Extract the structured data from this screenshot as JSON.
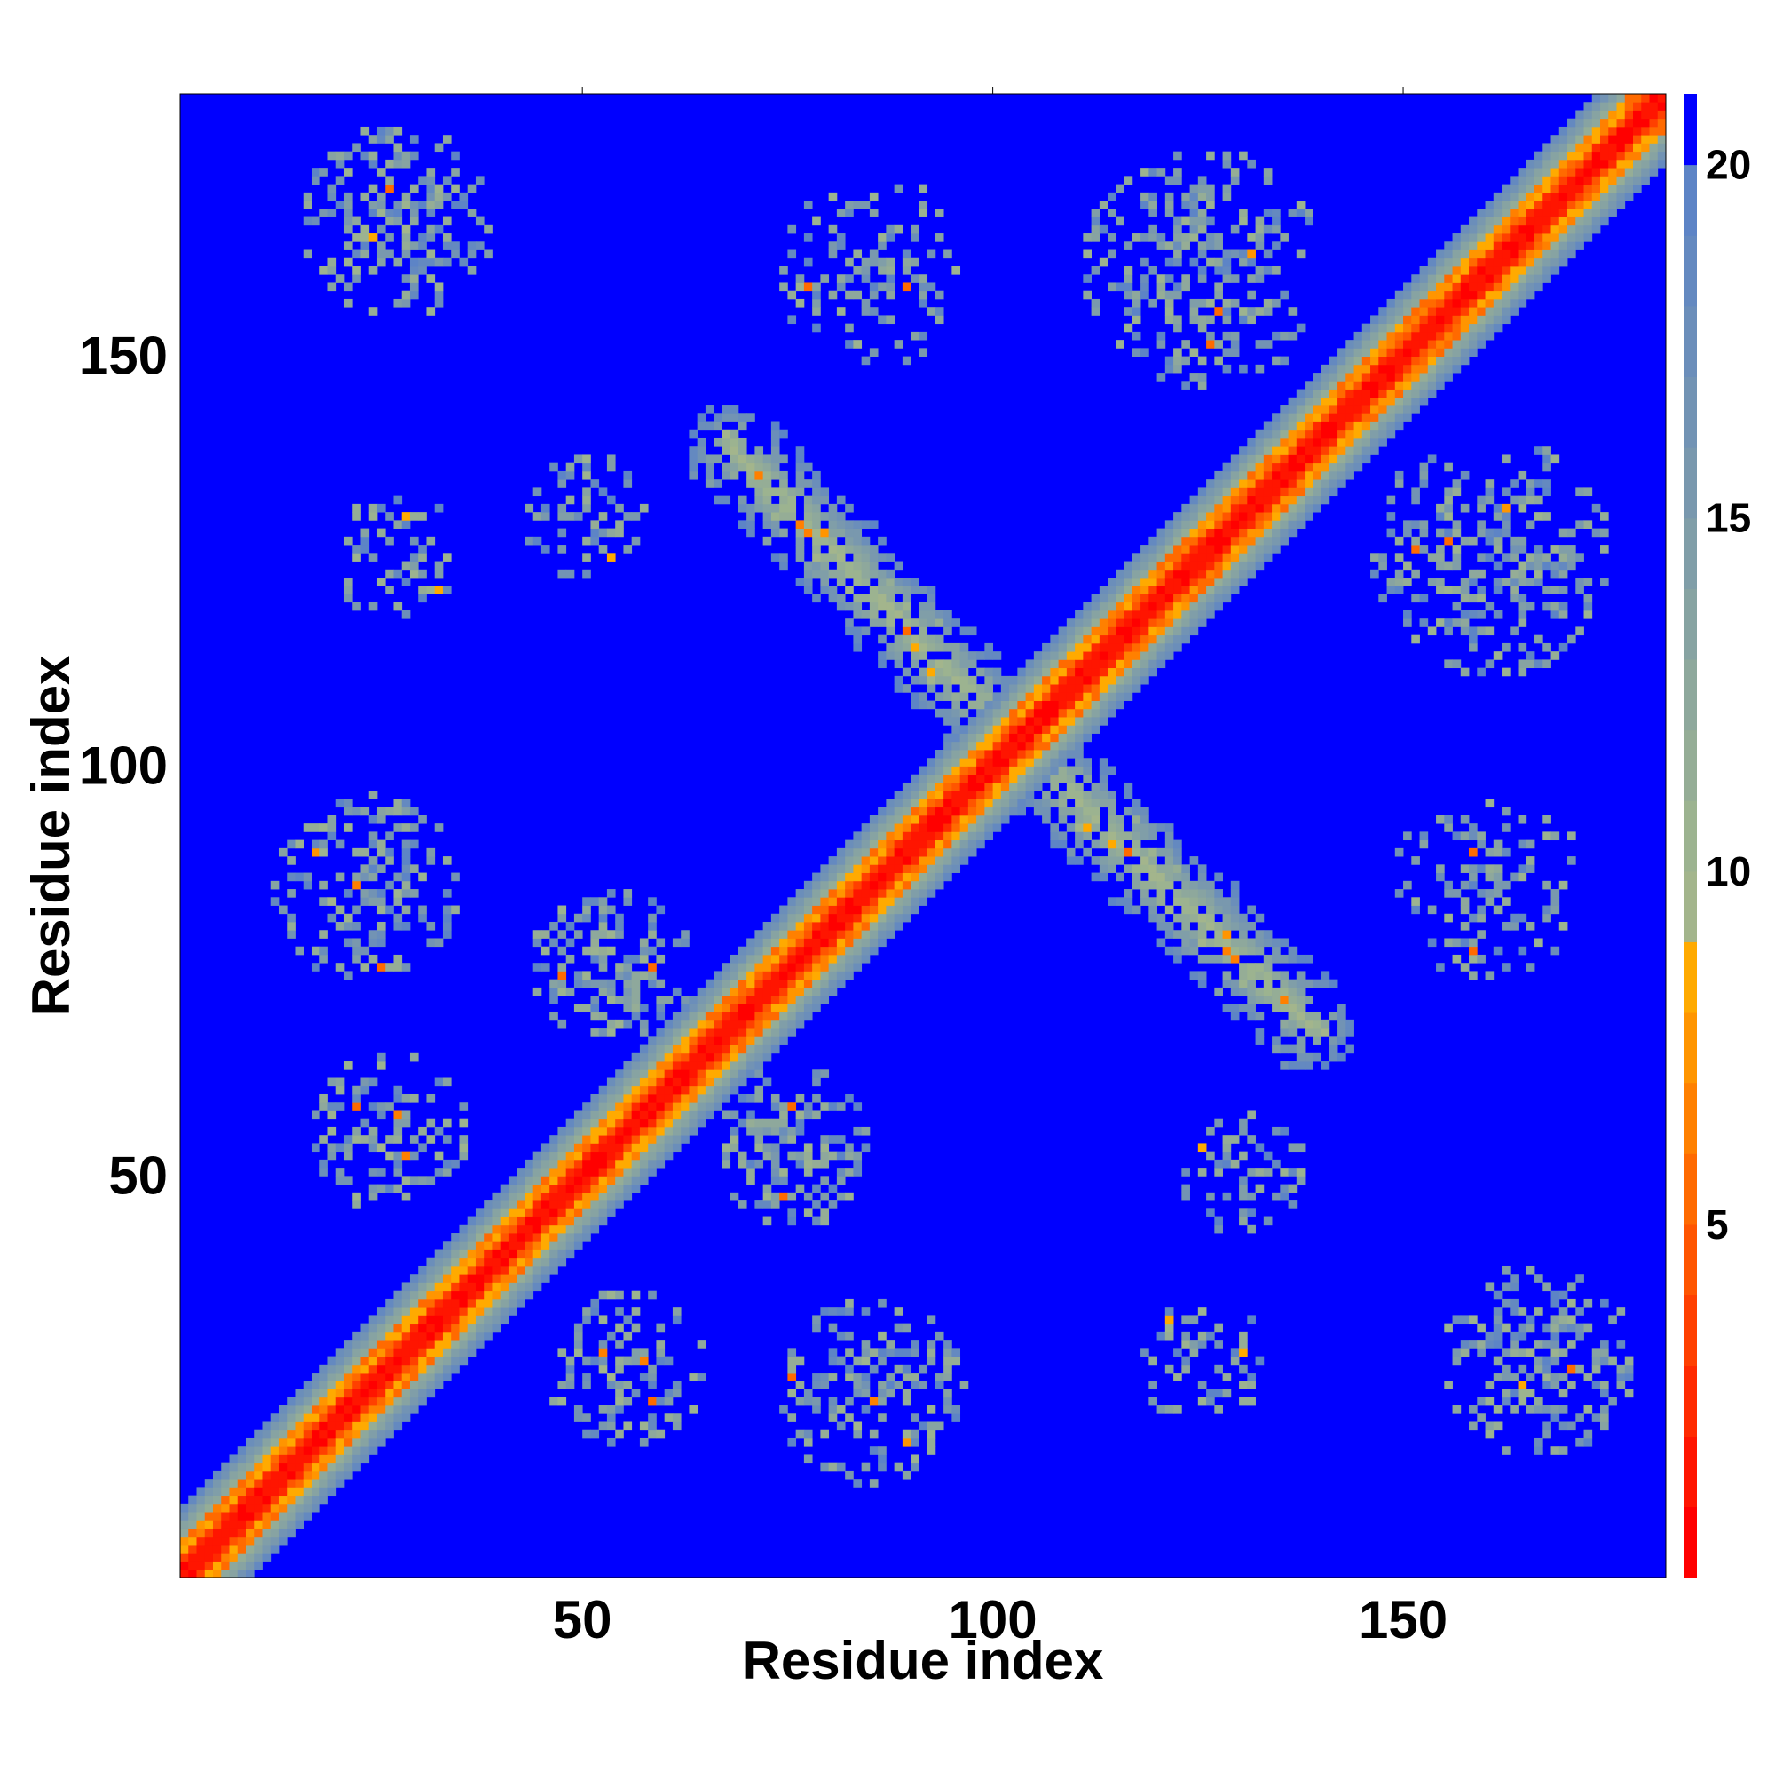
{
  "chart_data": {
    "type": "heatmap",
    "title": "",
    "xlabel": "Residue index",
    "ylabel": "Residue index",
    "n_residues": 181,
    "xlim": [
      1,
      181
    ],
    "ylim": [
      1,
      181
    ],
    "x_ticks": [
      50,
      100,
      150
    ],
    "y_ticks": [
      50,
      100,
      150
    ],
    "colorbar": {
      "range": [
        0,
        21
      ],
      "ticks": [
        5,
        10,
        15,
        20
      ],
      "bands": [
        {
          "from": 0,
          "to": 1,
          "color": "#ff0000"
        },
        {
          "from": 1,
          "to": 2,
          "color": "#ff1500"
        },
        {
          "from": 2,
          "to": 3,
          "color": "#ff2a00"
        },
        {
          "from": 3,
          "to": 4,
          "color": "#ff4000"
        },
        {
          "from": 4,
          "to": 5,
          "color": "#ff5500"
        },
        {
          "from": 5,
          "to": 6,
          "color": "#ff6a00"
        },
        {
          "from": 6,
          "to": 7,
          "color": "#ff8000"
        },
        {
          "from": 7,
          "to": 8,
          "color": "#ff9500"
        },
        {
          "from": 8,
          "to": 9,
          "color": "#ffaa00"
        },
        {
          "from": 9,
          "to": 10,
          "color": "#a3b58c"
        },
        {
          "from": 10,
          "to": 11,
          "color": "#9cb390"
        },
        {
          "from": 11,
          "to": 12,
          "color": "#95ad96"
        },
        {
          "from": 12,
          "to": 13,
          "color": "#8ea89c"
        },
        {
          "from": 13,
          "to": 14,
          "color": "#87a3a2"
        },
        {
          "from": 14,
          "to": 15,
          "color": "#809ea8"
        },
        {
          "from": 15,
          "to": 16,
          "color": "#7998ae"
        },
        {
          "from": 16,
          "to": 17,
          "color": "#7293b4"
        },
        {
          "from": 17,
          "to": 18,
          "color": "#6b8eba"
        },
        {
          "from": 18,
          "to": 19,
          "color": "#6489c0"
        },
        {
          "from": 19,
          "to": 20,
          "color": "#5d84c6"
        },
        {
          "from": 20,
          "to": 21,
          "color": "#0000ff"
        }
      ]
    },
    "description_features": {
      "diagonal_band_width": 8,
      "background_value": 21,
      "contact_blobs": [
        {
          "cx": 27,
          "cy": 166,
          "r": 12,
          "density": 0.55
        },
        {
          "cx": 27,
          "cy": 125,
          "r": 8,
          "density": 0.35
        },
        {
          "cx": 23,
          "cy": 85,
          "r": 12,
          "density": 0.45
        },
        {
          "cx": 26,
          "cy": 55,
          "r": 10,
          "density": 0.5
        },
        {
          "cx": 50,
          "cy": 130,
          "r": 8,
          "density": 0.35
        },
        {
          "cx": 53,
          "cy": 75,
          "r": 10,
          "density": 0.6
        },
        {
          "cx": 72,
          "cy": 55,
          "r": 12,
          "density": 0.6
        },
        {
          "cx": 80,
          "cy": 25,
          "r": 10,
          "density": 0.45
        },
        {
          "cx": 50,
          "cy": 27,
          "r": 10,
          "density": 0.45
        },
        {
          "cx": 85,
          "cy": 160,
          "r": 12,
          "density": 0.35
        },
        {
          "cx": 125,
          "cy": 160,
          "r": 15,
          "density": 0.45
        },
        {
          "cx": 160,
          "cy": 125,
          "r": 12,
          "density": 0.45
        },
        {
          "cx": 160,
          "cy": 85,
          "r": 12,
          "density": 0.45
        },
        {
          "cx": 125,
          "cy": 53,
          "r": 8,
          "density": 0.35
        },
        {
          "cx": 125,
          "cy": 28,
          "r": 8,
          "density": 0.35
        },
        {
          "cx": 163,
          "cy": 27,
          "r": 12,
          "density": 0.55
        }
      ],
      "contact_bands": [
        {
          "x1": 68,
          "y1": 138,
          "x2": 100,
          "y2": 105,
          "w": 6
        },
        {
          "x1": 105,
          "y1": 100,
          "x2": 140,
          "y2": 68,
          "w": 6
        }
      ]
    }
  }
}
